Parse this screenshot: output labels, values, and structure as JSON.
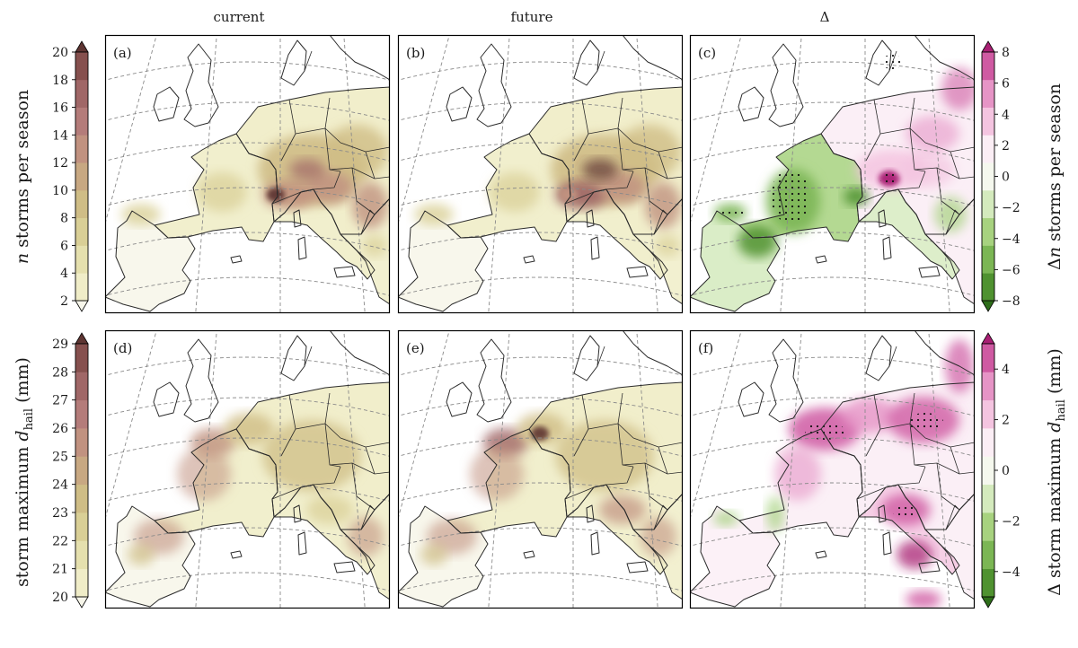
{
  "column_titles": [
    "current",
    "future",
    "Δ"
  ],
  "panels": [
    {
      "letter": "(a)",
      "row": "n_storms",
      "column": "current"
    },
    {
      "letter": "(b)",
      "row": "n_storms",
      "column": "future"
    },
    {
      "letter": "(c)",
      "row": "n_storms",
      "column": "delta"
    },
    {
      "letter": "(d)",
      "row": "max_hail",
      "column": "current"
    },
    {
      "letter": "(e)",
      "row": "max_hail",
      "column": "future"
    },
    {
      "letter": "(f)",
      "row": "max_hail",
      "column": "delta"
    }
  ],
  "colorbars": {
    "n_storms": {
      "label_parts": [
        "n",
        " storms per season"
      ],
      "ticks": [
        "2",
        "4",
        "6",
        "8",
        "10",
        "12",
        "14",
        "16",
        "18",
        "20"
      ],
      "levels": [
        2,
        20
      ],
      "colors": [
        "#f7f6ea",
        "#f0edc8",
        "#e5e0ae",
        "#d9cf96",
        "#cfbd86",
        "#c8a882",
        "#c19280",
        "#b47c7a",
        "#a06767",
        "#86504e",
        "#5e3532"
      ]
    },
    "delta_n_storms": {
      "label_parts": [
        "Δ",
        "n",
        " storms per season"
      ],
      "ticks": [
        "−8",
        "−6",
        "−4",
        "−2",
        "0",
        "2",
        "4",
        "6",
        "8"
      ],
      "levels": [
        -8,
        8
      ],
      "colors": [
        "#2e6e1a",
        "#4f9230",
        "#7bb654",
        "#a7d27f",
        "#d4eabd",
        "#f5f8ee",
        "#fbeef5",
        "#f4c4e0",
        "#e694c6",
        "#cf5aa2",
        "#a91f74"
      ]
    },
    "max_hail": {
      "label_parts": [
        "storm maximum ",
        "d",
        "hail",
        " (mm)"
      ],
      "ticks": [
        "20",
        "21",
        "22",
        "23",
        "24",
        "25",
        "26",
        "27",
        "28",
        "29"
      ],
      "levels": [
        20,
        29
      ],
      "colors": [
        "#f7f6ea",
        "#f0edc8",
        "#e5e0ae",
        "#d9cf96",
        "#cfbd86",
        "#c8a882",
        "#c19280",
        "#b47c7a",
        "#a06767",
        "#86504e",
        "#5e3532"
      ]
    },
    "delta_max_hail": {
      "label_parts": [
        "Δ storm maximum ",
        "d",
        "hail",
        " (mm)"
      ],
      "ticks": [
        "−4",
        "−2",
        "0",
        "2",
        "4"
      ],
      "levels": [
        -5,
        5
      ],
      "colors": [
        "#2e6e1a",
        "#4f9230",
        "#7bb654",
        "#a7d27f",
        "#d4eabd",
        "#f5f8ee",
        "#fbeef5",
        "#f4c4e0",
        "#e694c6",
        "#cf5aa2",
        "#a91f74"
      ]
    }
  },
  "map_colors": {
    "land_line": "#2b2b2b",
    "grid_line": "#8a8a8a"
  }
}
